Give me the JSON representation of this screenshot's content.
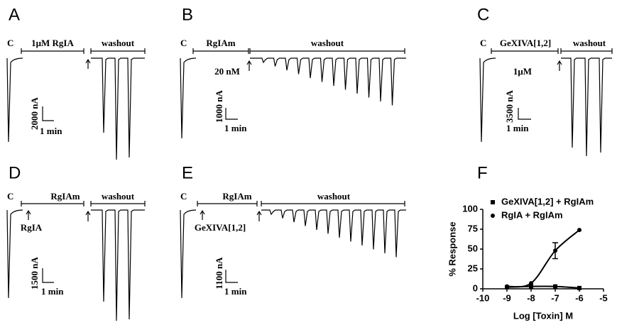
{
  "panels": [
    {
      "label": "A",
      "control": "C",
      "treatment": "1μM  RgIA",
      "washout": "washout",
      "scale_current": "2000 nA",
      "scale_time": "1 min"
    },
    {
      "label": "B",
      "control": "C",
      "treatment": "RgIAm",
      "concentration": "20 nM",
      "washout": "washout",
      "scale_current": "1000 nA",
      "scale_time": "1 min"
    },
    {
      "label": "C",
      "control": "C",
      "treatment": "GeXIVA[1,2]",
      "concentration": "1μM",
      "washout": "washout",
      "scale_current": "3500 nA",
      "scale_time": "1 min"
    },
    {
      "label": "D",
      "control": "C",
      "treatment": "RgIAm",
      "pretreatment": "RgIA",
      "washout": "washout",
      "scale_current": "1500 nA",
      "scale_time": "1 min"
    },
    {
      "label": "E",
      "control": "C",
      "treatment": "RgIAm",
      "pretreatment": "GeXIVA[1,2]",
      "washout": "washout",
      "scale_current": "1100 nA",
      "scale_time": "1 min"
    }
  ],
  "chart_data": {
    "type": "line",
    "panel_label": "F",
    "x_label": "Log [Toxin] M",
    "y_label": "% Response",
    "x": [
      -9,
      -8,
      -7,
      -6
    ],
    "series": [
      {
        "name": "GeXIVA[1,2] + RgIAm",
        "marker": "square",
        "color": "#000000",
        "values": [
          2,
          3,
          3,
          1
        ]
      },
      {
        "name": "RgIA + RgIAm",
        "marker": "circle",
        "color": "#000000",
        "values": [
          3,
          7,
          48,
          74
        ],
        "errors": [
          null,
          null,
          10,
          null
        ]
      }
    ],
    "xlim": [
      -10,
      -5
    ],
    "xticks": [
      -10,
      -9,
      -8,
      -7,
      -6,
      -5
    ],
    "ylim": [
      0,
      100
    ],
    "yticks": [
      0,
      25,
      50,
      75,
      100
    ],
    "legend": "top-left"
  }
}
